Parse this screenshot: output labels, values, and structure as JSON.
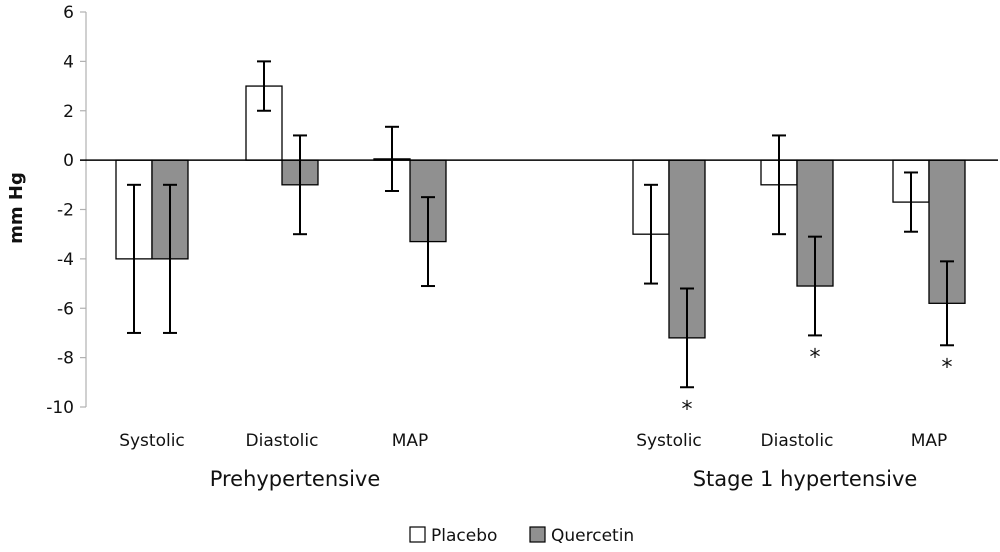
{
  "chart_data": {
    "type": "bar",
    "title": "",
    "xlabel": "",
    "ylabel": "mm Hg",
    "ylim": [
      -10,
      6
    ],
    "yticks": [
      6,
      4,
      2,
      0,
      -2,
      -4,
      -6,
      -8,
      -10
    ],
    "grid": false,
    "legend_position": "bottom-center",
    "groups": [
      {
        "label": "Prehypertensive",
        "categories": [
          {
            "label": "Systolic",
            "placebo": -4,
            "placebo_err": 3,
            "quercetin": -4,
            "quercetin_err": 3,
            "significant": ""
          },
          {
            "label": "Diastolic",
            "placebo": 3,
            "placebo_err": 1,
            "quercetin": -1,
            "quercetin_err": 2,
            "significant": ""
          },
          {
            "label": "MAP",
            "placebo": 0.05,
            "placebo_err": 1.3,
            "quercetin": -3.3,
            "quercetin_err": 1.8,
            "significant": ""
          }
        ]
      },
      {
        "label": "Stage 1 hypertensive",
        "categories": [
          {
            "label": "Systolic",
            "placebo": -3,
            "placebo_err": 2,
            "quercetin": -7.2,
            "quercetin_err": 2,
            "significant": "*"
          },
          {
            "label": "Diastolic",
            "placebo": -1,
            "placebo_err": 2,
            "quercetin": -5.1,
            "quercetin_err": 2,
            "significant": "*"
          },
          {
            "label": "MAP",
            "placebo": -1.7,
            "placebo_err": 1.2,
            "quercetin": -5.8,
            "quercetin_err": 1.7,
            "significant": "*"
          }
        ]
      }
    ],
    "series": [
      {
        "name": "Placebo",
        "color": "#ffffff"
      },
      {
        "name": "Quercetin",
        "color": "#909090"
      }
    ]
  }
}
